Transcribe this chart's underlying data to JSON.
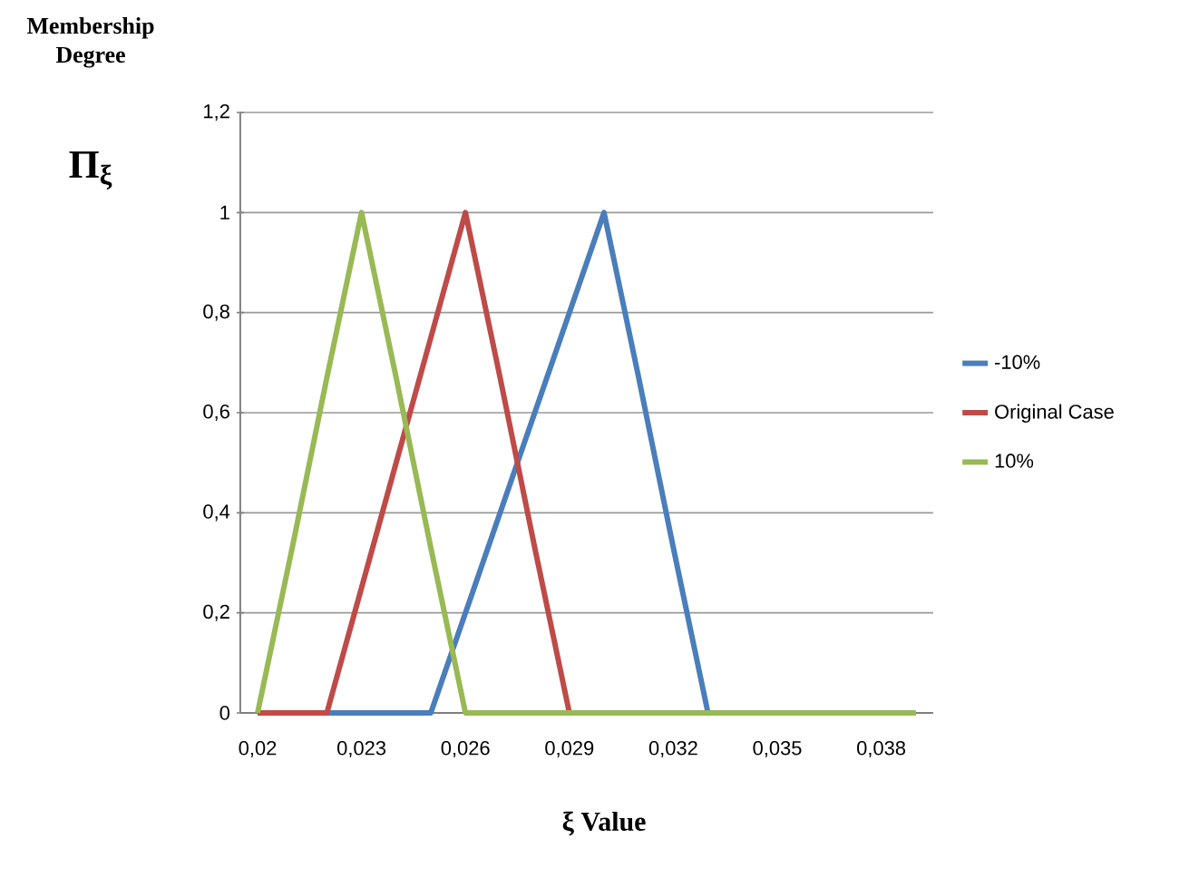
{
  "chart_data": {
    "type": "line",
    "xlabel": "ξ Value",
    "ylabel": "Membership Degree",
    "annotations": [
      "Π$_{ξ}$"
    ],
    "categories": [
      "0,02",
      null,
      null,
      "0,023",
      null,
      null,
      "0,026",
      null,
      null,
      "0,029",
      null,
      null,
      "0,032",
      null,
      null,
      "0,035",
      null,
      null,
      "0,038",
      null
    ],
    "series": [
      {
        "name": "-10%",
        "color": "#4a7ebb",
        "values": [
          null,
          null,
          0,
          0,
          0,
          0,
          0.2,
          0.4,
          0.6,
          0.8,
          1,
          0.67,
          0.33,
          0,
          null,
          null,
          null,
          null,
          null,
          null
        ]
      },
      {
        "name": "Original Case",
        "color": "#be4b48",
        "values": [
          0,
          0,
          0,
          0.25,
          0.5,
          0.75,
          1,
          0.67,
          0.33,
          0,
          null,
          null,
          null,
          null,
          null,
          null,
          null,
          null,
          null,
          null
        ]
      },
      {
        "name": "10%",
        "color": "#98b954",
        "values": [
          0,
          0.33,
          0.67,
          1,
          0.67,
          0.33,
          0,
          0,
          0,
          0,
          0,
          0,
          0,
          0,
          0,
          0,
          0,
          0,
          0,
          0
        ]
      }
    ],
    "ylim": [
      0,
      1.2
    ],
    "yticks": [
      0,
      {
        "value": 0.2,
        "label": "0,2"
      },
      {
        "value": 0.4,
        "label": "0,4"
      },
      {
        "value": 0.6,
        "label": "0,6"
      },
      {
        "value": 0.8,
        "label": "0,8"
      },
      1,
      {
        "value": 1.2,
        "label": "1,2"
      }
    ],
    "grid": "y",
    "legend": "right",
    "marker": "none",
    "line_style": "solid"
  }
}
